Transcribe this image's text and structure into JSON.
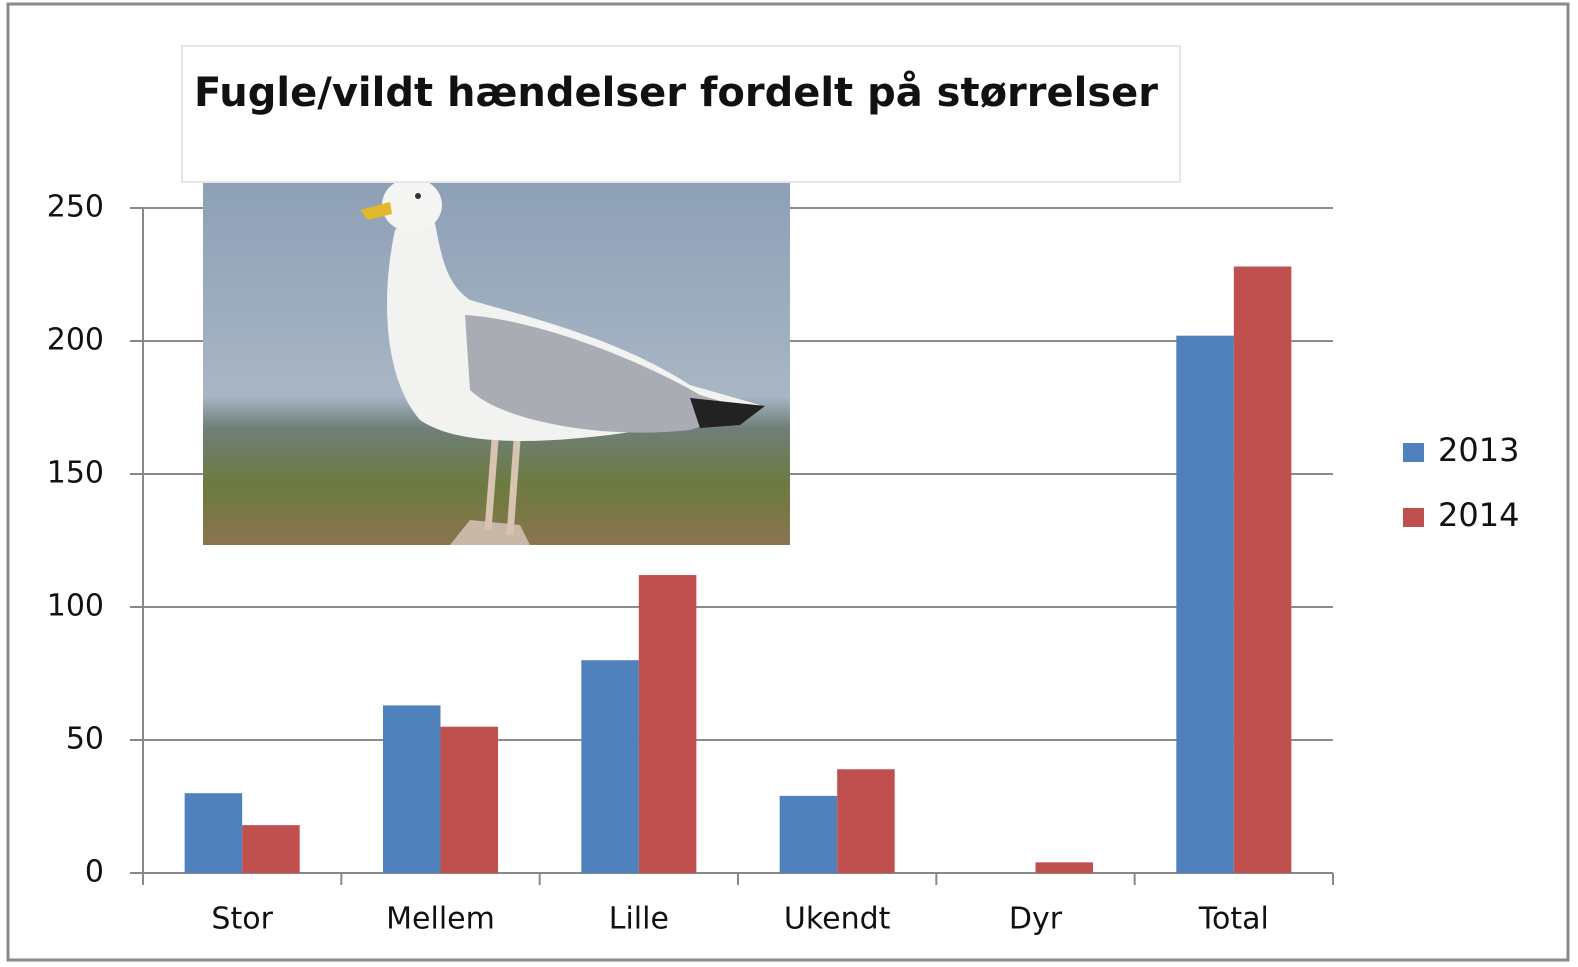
{
  "chart_data": {
    "type": "bar",
    "title": "Fugle/vildt hændelser fordelt på størrelser",
    "categories": [
      "Stor",
      "Mellem",
      "Lille",
      "Ukendt",
      "Dyr",
      "Total"
    ],
    "series": [
      {
        "name": "2013",
        "color": "#4f81bd",
        "values": [
          30,
          63,
          80,
          29,
          0,
          202
        ]
      },
      {
        "name": "2014",
        "color": "#c0504d",
        "values": [
          18,
          55,
          112,
          39,
          4,
          228
        ]
      }
    ],
    "ylim": [
      0,
      250
    ],
    "yticks": [
      0,
      50,
      100,
      150,
      200,
      250
    ],
    "grid": true,
    "legend": "right"
  }
}
